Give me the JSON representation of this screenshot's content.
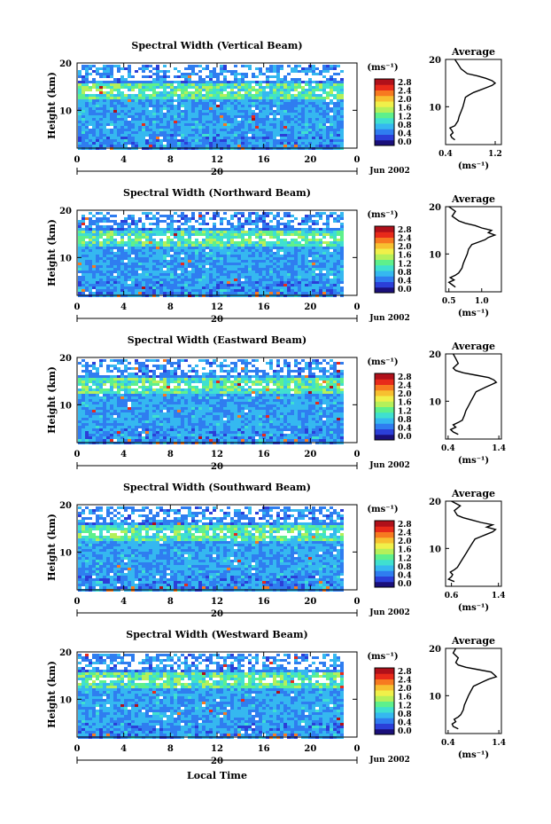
{
  "figure": {
    "xlabel": "Local Time",
    "date_label": "Jun 2002",
    "day_label": "20",
    "unit_label": "(ms⁻¹)",
    "ylabel": "Height (km)",
    "average_title": "Average",
    "colorbar_ticks": [
      "2.8",
      "2.4",
      "2.0",
      "1.6",
      "1.2",
      "0.8",
      "0.4",
      "0.0"
    ],
    "colorscale": [
      "#1a0f7a",
      "#2b3fd8",
      "#2f7df0",
      "#35b8f0",
      "#3fe0d0",
      "#5ef08c",
      "#b5f05a",
      "#f0f04a",
      "#f7c030",
      "#f77a20",
      "#e82a1a",
      "#b0101a"
    ]
  },
  "chart_data": [
    {
      "type": "heatmap",
      "title": "Spectral Width (Vertical Beam)",
      "x_ticks": [
        "0",
        "4",
        "8",
        "12",
        "16",
        "20",
        "0"
      ],
      "y_ticks": [
        "20",
        "10"
      ],
      "xlim": [
        0,
        24
      ],
      "ylim": [
        2,
        20
      ],
      "average": {
        "title": "Average",
        "x_ticks": [
          "0.4",
          "1.2"
        ],
        "xlim": [
          0.4,
          1.3
        ],
        "y_ticks": [
          "20",
          "10"
        ],
        "ylim": [
          2,
          20
        ],
        "x": [
          0.55,
          0.5,
          0.48,
          0.52,
          0.5,
          0.47,
          0.55,
          0.6,
          0.62,
          0.65,
          0.68,
          0.7,
          0.72,
          0.78,
          0.85,
          0.95,
          1.05,
          1.15,
          1.2,
          1.15,
          1.05,
          0.92,
          0.75,
          0.65,
          0.6,
          0.55
        ],
        "y": [
          3,
          3.5,
          4,
          4.5,
          5,
          5.5,
          6,
          7,
          8,
          9,
          10,
          11,
          12,
          12.5,
          13,
          13.5,
          14,
          14.5,
          15,
          15.5,
          16,
          16.5,
          17,
          18,
          19,
          20
        ]
      }
    },
    {
      "type": "heatmap",
      "title": "Spectral Width (Northward Beam)",
      "x_ticks": [
        "0",
        "4",
        "8",
        "12",
        "16",
        "20",
        "0"
      ],
      "y_ticks": [
        "20",
        "10"
      ],
      "xlim": [
        0,
        24
      ],
      "ylim": [
        2,
        20
      ],
      "average": {
        "title": "Average",
        "x_ticks": [
          "0.5",
          "1.0"
        ],
        "xlim": [
          0.45,
          1.3
        ],
        "y_ticks": [
          "20",
          "10"
        ],
        "ylim": [
          2,
          20
        ],
        "x": [
          0.6,
          0.55,
          0.5,
          0.58,
          0.52,
          0.6,
          0.65,
          0.7,
          0.72,
          0.75,
          0.78,
          0.8,
          0.85,
          0.95,
          1.05,
          1.1,
          1.2,
          1.1,
          1.15,
          1.0,
          0.9,
          0.75,
          0.65,
          0.55,
          0.6,
          0.5
        ],
        "y": [
          3,
          3.5,
          4,
          4.5,
          5,
          5.5,
          6,
          7,
          8,
          9,
          10,
          11,
          12,
          12.5,
          13,
          13.5,
          14,
          14.5,
          15,
          15.5,
          16,
          16.5,
          17,
          18,
          19,
          20
        ]
      }
    },
    {
      "type": "heatmap",
      "title": "Spectral Width (Eastward Beam)",
      "x_ticks": [
        "0",
        "4",
        "8",
        "12",
        "16",
        "20",
        "0"
      ],
      "y_ticks": [
        "20",
        "10"
      ],
      "xlim": [
        0,
        24
      ],
      "ylim": [
        2,
        20
      ],
      "average": {
        "title": "Average",
        "x_ticks": [
          "0.4",
          "1.4"
        ],
        "xlim": [
          0.35,
          1.45
        ],
        "y_ticks": [
          "20",
          "10"
        ],
        "ylim": [
          2,
          20
        ],
        "x": [
          0.6,
          0.5,
          0.45,
          0.55,
          0.5,
          0.6,
          0.68,
          0.72,
          0.75,
          0.8,
          0.85,
          0.9,
          0.95,
          1.05,
          1.15,
          1.25,
          1.35,
          1.3,
          1.2,
          0.95,
          0.7,
          0.55,
          0.5,
          0.6,
          0.55,
          0.5
        ],
        "y": [
          3,
          3.5,
          4,
          4.5,
          5,
          5.5,
          6,
          7,
          8,
          9,
          10,
          11,
          12,
          12.5,
          13,
          13.5,
          14,
          14.5,
          15,
          15.5,
          16,
          16.5,
          17,
          18,
          19,
          20
        ]
      }
    },
    {
      "type": "heatmap",
      "title": "Spectral Width (Southward Beam)",
      "x_ticks": [
        "0",
        "4",
        "8",
        "12",
        "16",
        "20",
        "0"
      ],
      "y_ticks": [
        "20",
        "10"
      ],
      "xlim": [
        0,
        24
      ],
      "ylim": [
        2,
        20
      ],
      "average": {
        "title": "Average",
        "x_ticks": [
          "0.6",
          "1.4"
        ],
        "xlim": [
          0.5,
          1.45
        ],
        "y_ticks": [
          "20",
          "10"
        ],
        "ylim": [
          2,
          20
        ],
        "x": [
          0.65,
          0.55,
          0.6,
          0.62,
          0.58,
          0.65,
          0.7,
          0.75,
          0.8,
          0.85,
          0.9,
          0.95,
          1.0,
          1.1,
          1.2,
          1.3,
          1.35,
          1.2,
          1.3,
          1.1,
          0.95,
          0.8,
          0.7,
          0.65,
          0.75,
          0.6
        ],
        "y": [
          3,
          3.5,
          4,
          4.5,
          5,
          5.5,
          6,
          7,
          8,
          9,
          10,
          11,
          12,
          12.5,
          13,
          13.5,
          14,
          14.5,
          15,
          15.5,
          16,
          16.5,
          17,
          18,
          19,
          20
        ]
      }
    },
    {
      "type": "heatmap",
      "title": "Spectral Width (Westward Beam)",
      "x_ticks": [
        "0",
        "4",
        "8",
        "12",
        "16",
        "20",
        "0"
      ],
      "y_ticks": [
        "20",
        "10"
      ],
      "xlim": [
        0,
        24
      ],
      "ylim": [
        2,
        20
      ],
      "average": {
        "title": "Average",
        "x_ticks": [
          "0.4",
          "1.4"
        ],
        "xlim": [
          0.35,
          1.45
        ],
        "y_ticks": [
          "20",
          "10"
        ],
        "ylim": [
          2,
          20
        ],
        "x": [
          0.6,
          0.5,
          0.48,
          0.55,
          0.52,
          0.6,
          0.65,
          0.7,
          0.72,
          0.76,
          0.8,
          0.85,
          0.9,
          1.0,
          1.1,
          1.2,
          1.35,
          1.3,
          1.25,
          1.0,
          0.75,
          0.6,
          0.55,
          0.6,
          0.5,
          0.55
        ],
        "y": [
          3,
          3.5,
          4,
          4.5,
          5,
          5.5,
          6,
          7,
          8,
          9,
          10,
          11,
          12,
          12.5,
          13,
          13.5,
          14,
          14.5,
          15,
          15.5,
          16,
          16.5,
          17,
          18,
          19,
          20
        ]
      }
    }
  ]
}
